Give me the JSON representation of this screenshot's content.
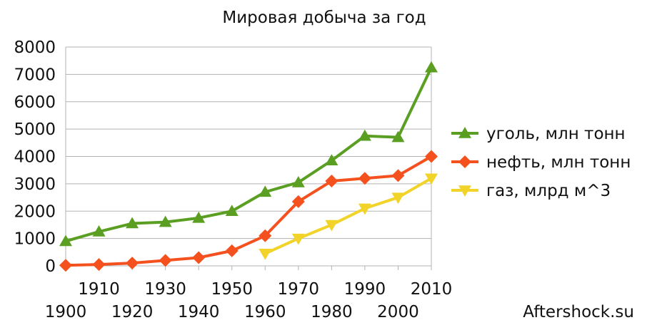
{
  "chart_data": {
    "type": "line",
    "title": "Мировая добыча за год",
    "xlabel": "",
    "ylabel": "",
    "x": [
      1900,
      1910,
      1920,
      1930,
      1940,
      1950,
      1960,
      1970,
      1980,
      1990,
      2000,
      2010
    ],
    "xlim": [
      1900,
      2010
    ],
    "ylim": [
      0,
      8000
    ],
    "yticks": [
      "0",
      "1000",
      "2000",
      "3000",
      "4000",
      "5000",
      "6000",
      "7000",
      "8000"
    ],
    "xticks_upper": [
      "1910",
      "1930",
      "1950",
      "1970",
      "1990",
      "2010"
    ],
    "xticks_lower": [
      "1900",
      "1920",
      "1940",
      "1960",
      "1980",
      "2000"
    ],
    "grid": true,
    "legend_position": "right",
    "series": [
      {
        "name": "уголь, млн тонн",
        "color": "#5a9e22",
        "marker": "triangle-up",
        "x": [
          1900,
          1910,
          1920,
          1930,
          1940,
          1950,
          1960,
          1970,
          1980,
          1990,
          2000,
          2010
        ],
        "values": [
          900,
          1250,
          1550,
          1600,
          1750,
          2000,
          2700,
          3050,
          3850,
          4750,
          4700,
          7250
        ]
      },
      {
        "name": "нефть, млн тонн",
        "color": "#f5511e",
        "marker": "diamond",
        "x": [
          1900,
          1910,
          1920,
          1930,
          1940,
          1950,
          1960,
          1970,
          1980,
          1990,
          2000,
          2010
        ],
        "values": [
          20,
          50,
          100,
          200,
          300,
          550,
          1100,
          2350,
          3100,
          3200,
          3300,
          4000
        ]
      },
      {
        "name": "газ, млрд м^3",
        "color": "#f2d32a",
        "marker": "triangle-down",
        "x": [
          1960,
          1970,
          1980,
          1990,
          2000,
          2010
        ],
        "values": [
          450,
          1000,
          1500,
          2100,
          2500,
          3200
        ]
      }
    ]
  },
  "watermark": "Aftershock.su"
}
